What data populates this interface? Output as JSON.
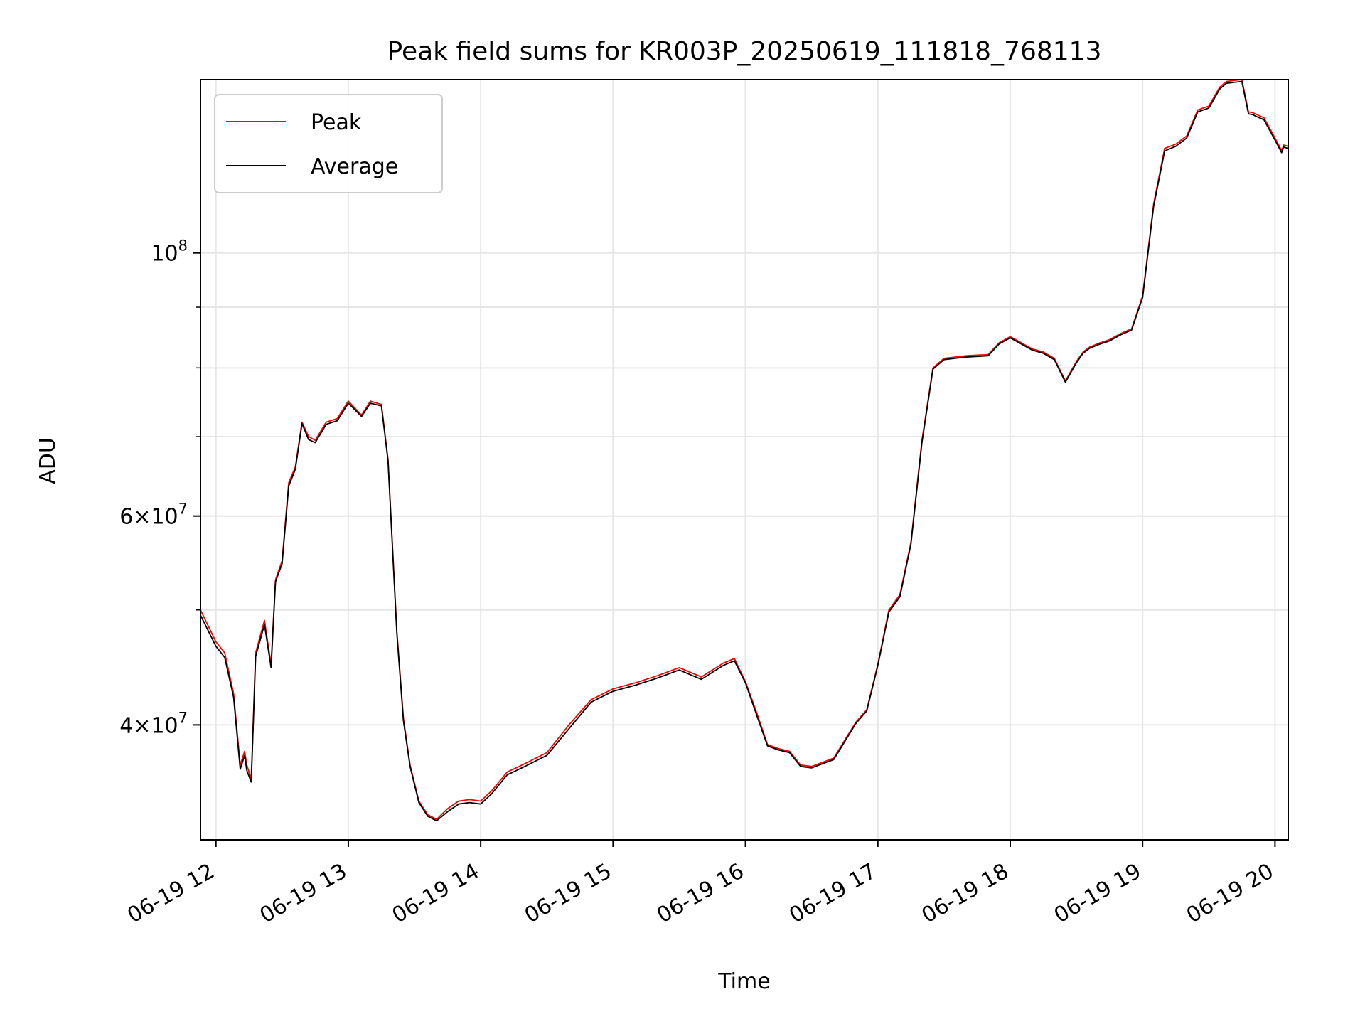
{
  "chart_data": {
    "type": "line",
    "title": "Peak field sums for KR003P_20250619_111818_768113",
    "xlabel": "Time",
    "ylabel": "ADU",
    "y_scale": "log",
    "ylim": [
      32000000,
      140000000
    ],
    "xlim": [
      "06-19 11:53",
      "06-19 20:06"
    ],
    "x_ticks": [
      "06-19 12",
      "06-19 13",
      "06-19 14",
      "06-19 15",
      "06-19 16",
      "06-19 17",
      "06-19 18",
      "06-19 19",
      "06-19 20"
    ],
    "y_major_ticks": [
      {
        "value": 40000000,
        "base": "4",
        "exp": "7"
      },
      {
        "value": 60000000,
        "base": "6",
        "exp": "7"
      },
      {
        "value": 100000000,
        "base": "",
        "exp": "8"
      }
    ],
    "y_minor_grid": [
      50000000,
      70000000,
      80000000,
      90000000
    ],
    "grid": true,
    "legend_position": "top-left",
    "series": [
      {
        "name": "Peak",
        "color": "#ff0000",
        "x": [
          "06-19 11:53",
          "06-19 12:00",
          "06-19 12:04",
          "06-19 12:08",
          "06-19 12:11",
          "06-19 12:13",
          "06-19 12:14",
          "06-19 12:16",
          "06-19 12:18",
          "06-19 12:22",
          "06-19 12:25",
          "06-19 12:27",
          "06-19 12:30",
          "06-19 12:33",
          "06-19 12:36",
          "06-19 12:39",
          "06-19 12:42",
          "06-19 12:45",
          "06-19 12:50",
          "06-19 12:55",
          "06-19 13:00",
          "06-19 13:06",
          "06-19 13:10",
          "06-19 13:15",
          "06-19 13:18",
          "06-19 13:22",
          "06-19 13:25",
          "06-19 13:28",
          "06-19 13:32",
          "06-19 13:36",
          "06-19 13:40",
          "06-19 13:45",
          "06-19 13:50",
          "06-19 13:55",
          "06-19 14:00",
          "06-19 14:05",
          "06-19 14:12",
          "06-19 14:20",
          "06-19 14:30",
          "06-19 14:40",
          "06-19 14:50",
          "06-19 15:00",
          "06-19 15:10",
          "06-19 15:20",
          "06-19 15:30",
          "06-19 15:40",
          "06-19 15:50",
          "06-19 15:55",
          "06-19 16:00",
          "06-19 16:05",
          "06-19 16:10",
          "06-19 16:15",
          "06-19 16:20",
          "06-19 16:25",
          "06-19 16:30",
          "06-19 16:40",
          "06-19 16:50",
          "06-19 16:55",
          "06-19 17:00",
          "06-19 17:05",
          "06-19 17:10",
          "06-19 17:15",
          "06-19 17:20",
          "06-19 17:25",
          "06-19 17:30",
          "06-19 17:35",
          "06-19 17:40",
          "06-19 17:45",
          "06-19 17:50",
          "06-19 17:55",
          "06-19 18:00",
          "06-19 18:05",
          "06-19 18:10",
          "06-19 18:15",
          "06-19 18:20",
          "06-19 18:25",
          "06-19 18:30",
          "06-19 18:33",
          "06-19 18:36",
          "06-19 18:40",
          "06-19 18:45",
          "06-19 18:50",
          "06-19 18:55",
          "06-19 19:00",
          "06-19 19:05",
          "06-19 19:10",
          "06-19 19:15",
          "06-19 19:20",
          "06-19 19:25",
          "06-19 19:30",
          "06-19 19:35",
          "06-19 19:38",
          "06-19 19:42",
          "06-19 19:45",
          "06-19 19:48",
          "06-19 19:50",
          "06-19 19:51",
          "06-19 19:55",
          "06-19 20:00",
          "06-19 20:03",
          "06-19 20:04",
          "06-19 20:06"
        ],
        "y": [
          50000000,
          47000000,
          46000000,
          42500000,
          37000000,
          38000000,
          37000000,
          36000000,
          46000000,
          49000000,
          45000000,
          53000000,
          55000000,
          64000000,
          66000000,
          72000000,
          70000000,
          69500000,
          72000000,
          72500000,
          75000000,
          73000000,
          75000000,
          74500000,
          67000000,
          48000000,
          40500000,
          37000000,
          34500000,
          33600000,
          33300000,
          34000000,
          34500000,
          34600000,
          34500000,
          35200000,
          36500000,
          37100000,
          37900000,
          40000000,
          42000000,
          42900000,
          43400000,
          44000000,
          44700000,
          43900000,
          45100000,
          45500000,
          43500000,
          41000000,
          38500000,
          38200000,
          38000000,
          37000000,
          36900000,
          37500000,
          40200000,
          41200000,
          45000000,
          50000000,
          51500000,
          57000000,
          69500000,
          80000000,
          81500000,
          81700000,
          81900000,
          82000000,
          82100000,
          84000000,
          85000000,
          84000000,
          83000000,
          82500000,
          81500000,
          78000000,
          81000000,
          82500000,
          83300000,
          83900000,
          84500000,
          85500000,
          86300000,
          92000000,
          110000000,
          122500000,
          123500000,
          125500000,
          132000000,
          133000000,
          138000000,
          139500000,
          139800000,
          140000000,
          131500000,
          131300000,
          131000000,
          130000000,
          125000000,
          122000000,
          123300000,
          123000000
        ]
      },
      {
        "name": "Average",
        "color": "#000000",
        "x": [
          "06-19 11:53",
          "06-19 12:00",
          "06-19 12:04",
          "06-19 12:08",
          "06-19 12:11",
          "06-19 12:13",
          "06-19 12:14",
          "06-19 12:16",
          "06-19 12:18",
          "06-19 12:22",
          "06-19 12:25",
          "06-19 12:27",
          "06-19 12:30",
          "06-19 12:33",
          "06-19 12:36",
          "06-19 12:39",
          "06-19 12:42",
          "06-19 12:45",
          "06-19 12:50",
          "06-19 12:55",
          "06-19 13:00",
          "06-19 13:06",
          "06-19 13:10",
          "06-19 13:15",
          "06-19 13:18",
          "06-19 13:22",
          "06-19 13:25",
          "06-19 13:28",
          "06-19 13:32",
          "06-19 13:36",
          "06-19 13:40",
          "06-19 13:45",
          "06-19 13:50",
          "06-19 13:55",
          "06-19 14:00",
          "06-19 14:05",
          "06-19 14:12",
          "06-19 14:20",
          "06-19 14:30",
          "06-19 14:40",
          "06-19 14:50",
          "06-19 15:00",
          "06-19 15:10",
          "06-19 15:20",
          "06-19 15:30",
          "06-19 15:40",
          "06-19 15:50",
          "06-19 15:55",
          "06-19 16:00",
          "06-19 16:05",
          "06-19 16:10",
          "06-19 16:15",
          "06-19 16:20",
          "06-19 16:25",
          "06-19 16:30",
          "06-19 16:40",
          "06-19 16:50",
          "06-19 16:55",
          "06-19 17:00",
          "06-19 17:05",
          "06-19 17:10",
          "06-19 17:15",
          "06-19 17:20",
          "06-19 17:25",
          "06-19 17:30",
          "06-19 17:35",
          "06-19 17:40",
          "06-19 17:45",
          "06-19 17:50",
          "06-19 17:55",
          "06-19 18:00",
          "06-19 18:05",
          "06-19 18:10",
          "06-19 18:15",
          "06-19 18:20",
          "06-19 18:25",
          "06-19 18:30",
          "06-19 18:33",
          "06-19 18:36",
          "06-19 18:40",
          "06-19 18:45",
          "06-19 18:50",
          "06-19 18:55",
          "06-19 19:00",
          "06-19 19:05",
          "06-19 19:10",
          "06-19 19:15",
          "06-19 19:20",
          "06-19 19:25",
          "06-19 19:30",
          "06-19 19:35",
          "06-19 19:38",
          "06-19 19:42",
          "06-19 19:45",
          "06-19 19:48",
          "06-19 19:50",
          "06-19 19:51",
          "06-19 19:55",
          "06-19 20:00",
          "06-19 20:03",
          "06-19 20:04",
          "06-19 20:06"
        ],
        "y": [
          49500000,
          46600000,
          45600000,
          42200000,
          36700000,
          37700000,
          36600000,
          35800000,
          45700000,
          48600000,
          44700000,
          52800000,
          54700000,
          63600000,
          65700000,
          71800000,
          69600000,
          69200000,
          71700000,
          72200000,
          74700000,
          72800000,
          74700000,
          74300000,
          66800000,
          47800000,
          40300000,
          36900000,
          34400000,
          33500000,
          33200000,
          33800000,
          34300000,
          34400000,
          34300000,
          35000000,
          36300000,
          36900000,
          37700000,
          39700000,
          41800000,
          42700000,
          43200000,
          43800000,
          44500000,
          43700000,
          44900000,
          45300000,
          43400000,
          40800000,
          38400000,
          38100000,
          37900000,
          36900000,
          36800000,
          37400000,
          40100000,
          41100000,
          44900000,
          49800000,
          51300000,
          56800000,
          69200000,
          79800000,
          81300000,
          81500000,
          81700000,
          81800000,
          81900000,
          83800000,
          84800000,
          83800000,
          82800000,
          82300000,
          81300000,
          77800000,
          80800000,
          82300000,
          83100000,
          83700000,
          84300000,
          85300000,
          86100000,
          91700000,
          109500000,
          121900000,
          123000000,
          125000000,
          131500000,
          132500000,
          137500000,
          139000000,
          139300000,
          139500000,
          131000000,
          130800000,
          130500000,
          129500000,
          124500000,
          121500000,
          122800000,
          122500000
        ]
      }
    ]
  }
}
